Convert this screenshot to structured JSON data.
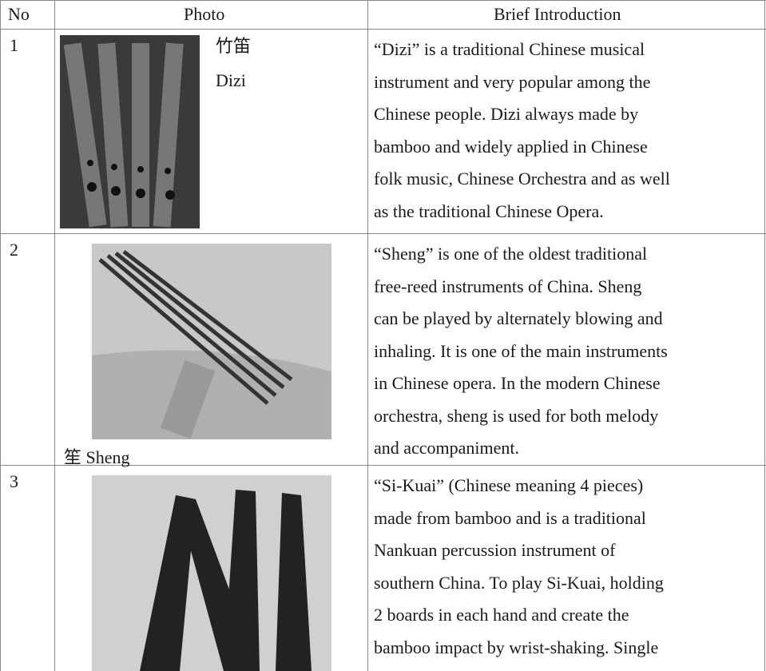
{
  "table": {
    "header": [
      "No",
      "Photo",
      "Brief  Introduction"
    ],
    "rows": [
      {
        "no": "1",
        "photo_labels": [
          "竹笛",
          "Dizi"
        ],
        "lines": [
          "“Dizi” is a traditional Chinese musical",
          "instrument and very popular among the",
          "Chinese people.   Dizi always made by",
          "bamboo and widely applied in Chinese",
          "folk music, Chinese Orchestra and as well",
          "as the traditional Chinese Opera."
        ]
      },
      {
        "no": "2",
        "photo_labels": [
          "笙 Sheng"
        ],
        "lines": [
          "“Sheng” is one of the oldest traditional",
          "free-reed instruments of China.   Sheng",
          "can be played by alternately blowing and",
          "inhaling. It is one of the main instruments",
          "in Chinese opera.  In the modern Chinese",
          "orchestra, sheng is used for both melody",
          "and accompaniment."
        ]
      },
      {
        "no": "3",
        "photo_labels": [],
        "lines": [
          "“Si-Kuai” (Chinese meaning 4 pieces)",
          "made from bamboo and is a traditional",
          "Nankuan percussion instrument of",
          "southern China.   To play Si-Kuai, holding",
          "2 boards in each hand and create the",
          "bamboo impact by wrist-shaking.   Single"
        ]
      }
    ]
  }
}
